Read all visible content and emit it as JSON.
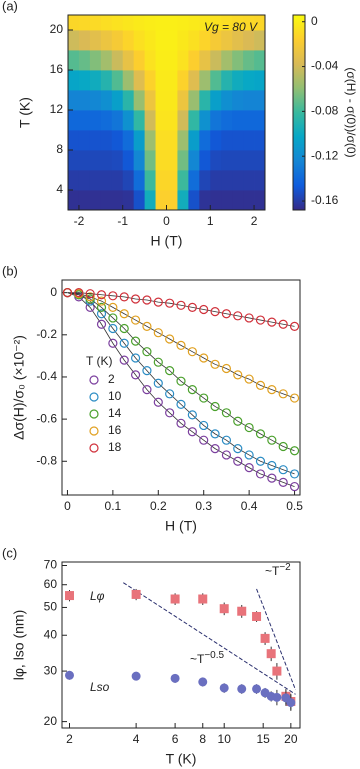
{
  "chart_data": [
    {
      "type": "heatmap",
      "panel_label": "(a)",
      "xlabel": "H (T)",
      "ylabel": "T (K)",
      "annotation": "Vg = 80 V",
      "colorbar_label": "(σ(H) - σ(0))/σ(0)",
      "x": [
        -2.125,
        -1.875,
        -1.625,
        -1.375,
        -1.125,
        -0.875,
        -0.625,
        -0.375,
        -0.125,
        0.125,
        0.375,
        0.625,
        0.875,
        1.125,
        1.375,
        1.625,
        1.875,
        2.125
      ],
      "y": [
        3,
        5,
        7,
        9,
        11,
        13,
        15,
        17,
        19,
        21
      ],
      "z": [
        [
          -0.165,
          -0.165,
          -0.165,
          -0.165,
          -0.165,
          -0.164,
          -0.151,
          -0.097,
          -0.015,
          -0.015,
          -0.097,
          -0.151,
          -0.164,
          -0.165,
          -0.165,
          -0.165,
          -0.165,
          -0.165
        ],
        [
          -0.16,
          -0.16,
          -0.16,
          -0.16,
          -0.16,
          -0.156,
          -0.137,
          -0.08,
          -0.012,
          -0.012,
          -0.08,
          -0.137,
          -0.156,
          -0.16,
          -0.16,
          -0.16,
          -0.16,
          -0.16
        ],
        [
          -0.155,
          -0.155,
          -0.155,
          -0.155,
          -0.154,
          -0.148,
          -0.123,
          -0.067,
          -0.009,
          -0.009,
          -0.067,
          -0.123,
          -0.148,
          -0.154,
          -0.155,
          -0.155,
          -0.155,
          -0.155
        ],
        [
          -0.15,
          -0.15,
          -0.15,
          -0.15,
          -0.148,
          -0.138,
          -0.109,
          -0.056,
          -0.008,
          -0.008,
          -0.056,
          -0.109,
          -0.138,
          -0.148,
          -0.15,
          -0.15,
          -0.15,
          -0.15
        ],
        [
          -0.14,
          -0.14,
          -0.14,
          -0.138,
          -0.133,
          -0.117,
          -0.084,
          -0.04,
          -0.005,
          -0.005,
          -0.04,
          -0.084,
          -0.117,
          -0.133,
          -0.138,
          -0.14,
          -0.14,
          -0.14
        ],
        [
          -0.125,
          -0.125,
          -0.123,
          -0.118,
          -0.108,
          -0.087,
          -0.057,
          -0.025,
          -0.003,
          -0.003,
          -0.025,
          -0.057,
          -0.087,
          -0.108,
          -0.118,
          -0.123,
          -0.125,
          -0.125
        ],
        [
          -0.104,
          -0.102,
          -0.098,
          -0.089,
          -0.075,
          -0.056,
          -0.034,
          -0.014,
          -0.002,
          -0.002,
          -0.014,
          -0.034,
          -0.056,
          -0.075,
          -0.089,
          -0.098,
          -0.102,
          -0.104
        ],
        [
          -0.074,
          -0.07,
          -0.063,
          -0.054,
          -0.042,
          -0.029,
          -0.016,
          -0.006,
          -0.001,
          -0.001,
          -0.006,
          -0.016,
          -0.029,
          -0.042,
          -0.054,
          -0.063,
          -0.07,
          -0.074
        ],
        [
          -0.041,
          -0.037,
          -0.032,
          -0.026,
          -0.02,
          -0.013,
          -0.007,
          -0.003,
          0,
          0,
          -0.003,
          -0.007,
          -0.013,
          -0.02,
          -0.026,
          -0.032,
          -0.037,
          -0.041
        ],
        [
          -0.012,
          -0.011,
          -0.01,
          -0.008,
          -0.006,
          -0.004,
          -0.002,
          -0.001,
          0,
          0,
          -0.001,
          -0.002,
          -0.004,
          -0.006,
          -0.008,
          -0.01,
          -0.011,
          -0.012
        ]
      ],
      "xlim": [
        -2.25,
        2.25
      ],
      "xticks": [
        -2,
        -1,
        0,
        1,
        2
      ],
      "ylim": [
        2,
        21.5
      ],
      "yticks": [
        4,
        8,
        12,
        16,
        20
      ],
      "zlim": [
        -0.168,
        0.006
      ],
      "zticks": [
        0,
        -0.04,
        -0.08,
        -0.12,
        -0.16
      ],
      "colormap": [
        "#352a87",
        "#0f5cdd",
        "#1485d4",
        "#06a7c6",
        "#38b99e",
        "#92bf73",
        "#d9ba56",
        "#fcce2e",
        "#f9fb0e"
      ]
    },
    {
      "type": "scatter",
      "panel_label": "(b)",
      "xlabel": "H (T)",
      "ylabel": "Δσ(H)/σ₀ (×10⁻²)",
      "legend_title": "T (K)",
      "line": true,
      "x": [
        0,
        0.025,
        0.05,
        0.075,
        0.1,
        0.125,
        0.15,
        0.175,
        0.2,
        0.225,
        0.25,
        0.275,
        0.3,
        0.325,
        0.35,
        0.375,
        0.4,
        0.425,
        0.45,
        0.475,
        0.5
      ],
      "series": [
        {
          "name": "2",
          "color": "#7b3f9e",
          "values": [
            0,
            -0.02,
            -0.07,
            -0.15,
            -0.24,
            -0.32,
            -0.39,
            -0.46,
            -0.52,
            -0.57,
            -0.62,
            -0.66,
            -0.7,
            -0.74,
            -0.77,
            -0.8,
            -0.83,
            -0.86,
            -0.88,
            -0.9,
            -0.92
          ]
        },
        {
          "name": "10",
          "color": "#2b8cc4",
          "values": [
            0,
            -0.01,
            -0.04,
            -0.1,
            -0.17,
            -0.24,
            -0.31,
            -0.37,
            -0.43,
            -0.48,
            -0.53,
            -0.58,
            -0.63,
            -0.67,
            -0.7,
            -0.74,
            -0.77,
            -0.8,
            -0.82,
            -0.84,
            -0.86
          ]
        },
        {
          "name": "14",
          "color": "#4aa02c",
          "values": [
            0,
            -0.01,
            -0.03,
            -0.07,
            -0.12,
            -0.17,
            -0.23,
            -0.28,
            -0.33,
            -0.37,
            -0.42,
            -0.46,
            -0.5,
            -0.54,
            -0.57,
            -0.61,
            -0.64,
            -0.67,
            -0.7,
            -0.73,
            -0.75
          ]
        },
        {
          "name": "16",
          "color": "#e0a020",
          "values": [
            0,
            -0.005,
            -0.02,
            -0.04,
            -0.07,
            -0.1,
            -0.13,
            -0.16,
            -0.19,
            -0.22,
            -0.25,
            -0.28,
            -0.31,
            -0.34,
            -0.36,
            -0.39,
            -0.41,
            -0.44,
            -0.46,
            -0.48,
            -0.5
          ]
        },
        {
          "name": "18",
          "color": "#d0303a",
          "values": [
            0,
            0,
            -0.005,
            -0.01,
            -0.015,
            -0.02,
            -0.03,
            -0.035,
            -0.045,
            -0.05,
            -0.06,
            -0.07,
            -0.08,
            -0.09,
            -0.1,
            -0.11,
            -0.12,
            -0.13,
            -0.14,
            -0.15,
            -0.16
          ]
        }
      ],
      "xlim": [
        -0.012,
        0.512
      ],
      "xticks": [
        0,
        0.1,
        0.2,
        0.3,
        0.4,
        0.5
      ],
      "ylim": [
        -0.96,
        0.06
      ],
      "yticks": [
        0,
        -0.2,
        -0.4,
        -0.6,
        -0.8
      ]
    },
    {
      "type": "scatter",
      "panel_label": "(c)",
      "xlabel": "T (K)",
      "ylabel": "lφ, lso (nm)",
      "xscale": "log",
      "yscale": "log",
      "x": [
        2,
        4,
        6,
        8,
        10,
        12,
        14,
        15.3,
        16.3,
        17.3,
        19,
        20
      ],
      "series": [
        {
          "name": "Lφ",
          "color": "#e8737a",
          "marker": "square",
          "values": [
            55,
            55.5,
            53.5,
            53.5,
            49.5,
            48.5,
            46.5,
            39,
            34.5,
            30,
            24.5,
            23.5
          ],
          "errors": [
            2.5,
            2.5,
            2.5,
            2.5,
            2.5,
            2.5,
            2,
            2,
            2,
            2,
            1.5,
            1.5
          ]
        },
        {
          "name": "Lso",
          "color": "#6a6fc0",
          "marker": "circle",
          "values": [
            29,
            28.8,
            28.3,
            27.5,
            26.2,
            26,
            26,
            25.2,
            24.5,
            24.3,
            24.2,
            23.3
          ],
          "errors": [
            1,
            1,
            1,
            1,
            1,
            1,
            1,
            1,
            1,
            1.5,
            1.5,
            1.5
          ]
        }
      ],
      "guides": [
        {
          "label": "~T",
          "exponent": "−0.5",
          "x": [
            3.5,
            21
          ],
          "values": [
            61,
            24.9
          ]
        },
        {
          "label": "~T",
          "exponent": "−2",
          "x": [
            14,
            21
          ],
          "values": [
            58,
            25.8
          ]
        }
      ],
      "xlim": [
        1.85,
        22
      ],
      "xticks": [
        2,
        4,
        6,
        8,
        10,
        15,
        20
      ],
      "ylim": [
        19,
        72
      ],
      "yticks": [
        20,
        30,
        40,
        50,
        60,
        70
      ]
    }
  ]
}
